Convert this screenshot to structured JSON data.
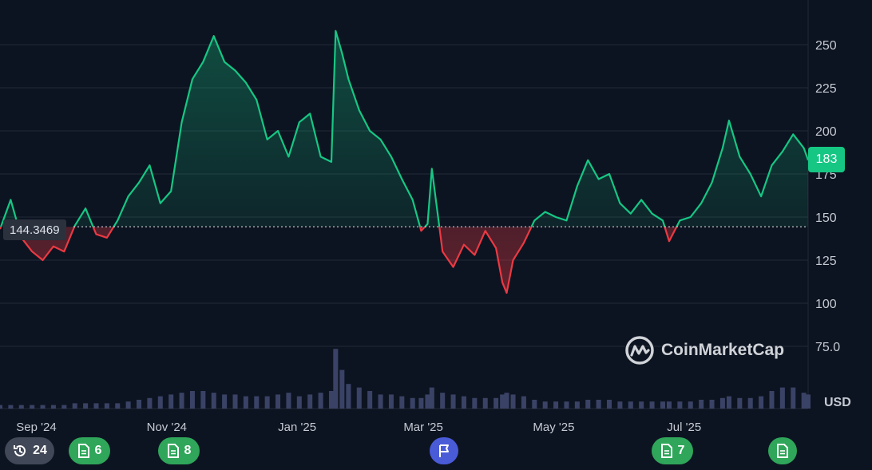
{
  "chart_data": {
    "type": "area",
    "y_ticks": [
      "250",
      "225",
      "200",
      "175",
      "150",
      "125",
      "100",
      "75.0"
    ],
    "y_tick_values": [
      250,
      225,
      200,
      175,
      150,
      125,
      100,
      75
    ],
    "x_ticks": [
      "Sep '24",
      "Nov '24",
      "Jan '25",
      "Mar '25",
      "May '25",
      "Jul '25"
    ],
    "x_tick_dates": [
      "2024-09-01",
      "2024-11-01",
      "2025-01-01",
      "2025-03-01",
      "2025-05-01",
      "2025-07-01"
    ],
    "x_range": [
      "2024-08-15",
      "2025-08-28"
    ],
    "ylim": [
      50,
      268
    ],
    "reference_value": 144.3469,
    "reference_label": "144.3469",
    "current_value_label": "183",
    "currency_label": "USD",
    "colors": {
      "up": "#16c784",
      "down": "#ea3943",
      "background": "#0d1421",
      "grid": "#222a36",
      "volume": "#3a4366"
    },
    "series": [
      {
        "x": [
          "2024-08-15",
          "2024-08-20",
          "2024-08-25",
          "2024-08-30",
          "2024-09-04",
          "2024-09-09",
          "2024-09-14",
          "2024-09-19",
          "2024-09-24",
          "2024-09-29",
          "2024-10-04",
          "2024-10-09",
          "2024-10-14",
          "2024-10-19",
          "2024-10-24",
          "2024-10-29",
          "2024-11-03",
          "2024-11-08",
          "2024-11-13",
          "2024-11-18",
          "2024-11-23",
          "2024-11-28",
          "2024-12-03",
          "2024-12-08",
          "2024-12-13",
          "2024-12-18",
          "2024-12-23",
          "2024-12-28",
          "2025-01-02",
          "2025-01-07",
          "2025-01-12",
          "2025-01-17",
          "2025-01-19",
          "2025-01-22",
          "2025-01-25",
          "2025-01-30",
          "2025-02-04",
          "2025-02-09",
          "2025-02-14",
          "2025-02-19",
          "2025-02-24",
          "2025-02-28",
          "2025-03-03",
          "2025-03-05",
          "2025-03-10",
          "2025-03-15",
          "2025-03-20",
          "2025-03-25",
          "2025-03-30",
          "2025-04-04",
          "2025-04-07",
          "2025-04-09",
          "2025-04-12",
          "2025-04-17",
          "2025-04-22",
          "2025-04-27",
          "2025-05-02",
          "2025-05-07",
          "2025-05-12",
          "2025-05-17",
          "2025-05-22",
          "2025-05-27",
          "2025-06-01",
          "2025-06-06",
          "2025-06-11",
          "2025-06-16",
          "2025-06-21",
          "2025-06-24",
          "2025-06-29",
          "2025-07-04",
          "2025-07-09",
          "2025-07-14",
          "2025-07-19",
          "2025-07-22",
          "2025-07-27",
          "2025-08-01",
          "2025-08-06",
          "2025-08-11",
          "2025-08-16",
          "2025-08-21",
          "2025-08-26",
          "2025-08-28"
        ],
        "values": [
          143,
          160,
          138,
          130,
          125,
          133,
          130,
          145,
          155,
          140,
          138,
          148,
          162,
          170,
          180,
          158,
          165,
          205,
          230,
          240,
          255,
          240,
          235,
          228,
          218,
          195,
          200,
          185,
          205,
          210,
          185,
          182,
          258,
          245,
          230,
          212,
          200,
          195,
          185,
          172,
          160,
          142,
          146,
          178,
          130,
          121,
          134,
          128,
          142,
          132,
          112,
          106,
          125,
          135,
          148,
          153,
          150,
          148,
          168,
          183,
          172,
          175,
          158,
          152,
          160,
          152,
          148,
          136,
          148,
          150,
          158,
          170,
          190,
          206,
          185,
          175,
          162,
          180,
          188,
          198,
          190,
          183
        ]
      }
    ],
    "volume_values": [
      2,
      2,
      2,
      2,
      2,
      2,
      2,
      3,
      3,
      3,
      3,
      3,
      4,
      5,
      6,
      7,
      8,
      9,
      10,
      10,
      9,
      8,
      8,
      7,
      7,
      7,
      8,
      9,
      7,
      8,
      9,
      10,
      34,
      22,
      14,
      12,
      10,
      8,
      8,
      7,
      6,
      6,
      8,
      12,
      9,
      8,
      7,
      6,
      6,
      6,
      8,
      9,
      8,
      7,
      5,
      4,
      4,
      4,
      4,
      5,
      5,
      5,
      4,
      4,
      4,
      4,
      4,
      4,
      4,
      4,
      5,
      5,
      6,
      7,
      6,
      6,
      7,
      10,
      12,
      12,
      9,
      8
    ]
  },
  "badges": [
    {
      "label": "24",
      "icon": "history-icon",
      "color": "#414857"
    },
    {
      "label": "6",
      "icon": "document-icon",
      "color": "#2fa65a"
    },
    {
      "label": "8",
      "icon": "document-icon",
      "color": "#2fa65a"
    },
    {
      "label": "",
      "icon": "flag-icon",
      "color": "#4a5bd8"
    },
    {
      "label": "7",
      "icon": "document-icon",
      "color": "#2fa65a"
    },
    {
      "label": "",
      "icon": "document-icon",
      "color": "#2fa65a"
    }
  ],
  "watermark": {
    "text": "CoinMarketCap",
    "icon": "coinmarketcap-logo-icon"
  }
}
